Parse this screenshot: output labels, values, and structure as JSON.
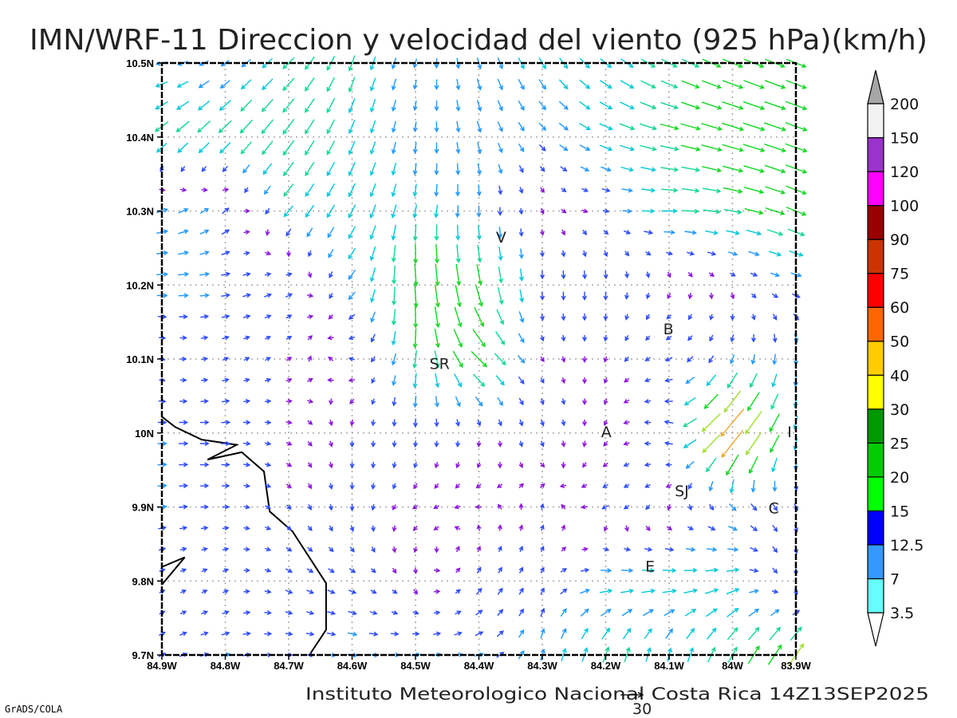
{
  "title": "IMN/WRF-11 Direccion y velocidad del viento (925 hPa)(km/h)",
  "footer": "Instituto Meteorologico Nacional Costa Rica 14Z13SEP2025",
  "grads_label": "GrADS/COLA",
  "reference_vector": {
    "label": "30",
    "value": 30
  },
  "axes": {
    "lon_range": [
      -84.9,
      -83.9
    ],
    "lat_range": [
      9.7,
      10.5
    ],
    "lon_labels": [
      "84.9W",
      "84.8W",
      "84.7W",
      "84.6W",
      "84.5W",
      "84.4W",
      "84.3W",
      "84.2W",
      "84.1W",
      "84W",
      "83.9W"
    ],
    "lat_labels": [
      "10.5N",
      "10.4N",
      "10.3N",
      "10.2N",
      "10.1N",
      "10N",
      "9.9N",
      "9.8N",
      "9.7N"
    ]
  },
  "colorbar": {
    "labels": [
      "3.5",
      "7",
      "12.5",
      "15",
      "20",
      "25",
      "30",
      "40",
      "50",
      "60",
      "75",
      "90",
      "100",
      "120",
      "150",
      "200"
    ],
    "colors": [
      "#66ffff",
      "#3399ff",
      "#0000ff",
      "#00ff00",
      "#00cc00",
      "#009900",
      "#ffff00",
      "#ffcc00",
      "#ff6600",
      "#ff0000",
      "#cc3300",
      "#990000",
      "#ff00ff",
      "#9933cc",
      "#f2f2f2"
    ],
    "below_color": "#ffffff",
    "above_color": "#a6a6a6"
  },
  "cities": [
    {
      "label": "V",
      "lon": -84.365,
      "lat": 10.265
    },
    {
      "label": "B",
      "lon": -84.101,
      "lat": 10.141
    },
    {
      "label": "SR",
      "lon": -84.462,
      "lat": 10.094
    },
    {
      "label": "A",
      "lon": -84.199,
      "lat": 10.002
    },
    {
      "label": "I",
      "lon": -83.91,
      "lat": 10.002
    },
    {
      "label": "SJ",
      "lon": -84.08,
      "lat": 9.922
    },
    {
      "label": "C",
      "lon": -83.935,
      "lat": 9.899
    },
    {
      "label": "E",
      "lon": -84.13,
      "lat": 9.82
    }
  ],
  "coastline": [
    [
      [
        -84.9,
        10.022
      ],
      [
        -84.879,
        10.008
      ],
      [
        -84.837,
        9.991
      ],
      [
        -84.782,
        9.984
      ],
      [
        -84.828,
        9.964
      ],
      [
        -84.774,
        9.974
      ],
      [
        -84.739,
        9.948
      ],
      [
        -84.73,
        9.894
      ],
      [
        -84.694,
        9.867
      ],
      [
        -84.641,
        9.797
      ],
      [
        -84.641,
        9.734
      ],
      [
        -84.665,
        9.703
      ],
      [
        -84.667,
        9.7
      ]
    ],
    [
      [
        -84.9,
        9.819
      ],
      [
        -84.864,
        9.832
      ],
      [
        -84.9,
        9.795
      ]
    ]
  ],
  "wind_field": {
    "units": "km/h",
    "lons": [
      -84.9,
      -84.8,
      -84.7,
      -84.6,
      -84.5,
      -84.4,
      -84.3,
      -84.2,
      -84.1,
      -84.0,
      -83.9
    ],
    "lats": [
      10.5,
      10.4,
      10.3,
      10.2,
      10.1,
      10.0,
      9.9,
      9.8,
      9.7
    ],
    "u": [
      [
        -10,
        -7,
        -10,
        -5,
        -2,
        3,
        6,
        10,
        14,
        18,
        18
      ],
      [
        -12,
        -12,
        -10,
        -5,
        -1,
        3,
        6,
        12,
        17,
        20,
        20
      ],
      [
        10,
        6,
        -8,
        -6,
        -2,
        0,
        1,
        5,
        14,
        16,
        18
      ],
      [
        10,
        8,
        6,
        -6,
        2,
        4,
        0,
        0,
        -1,
        2,
        8
      ],
      [
        4,
        5,
        3,
        -4,
        -2,
        14,
        2,
        -1,
        -6,
        -3,
        0
      ],
      [
        8,
        8,
        3,
        0,
        0,
        0,
        2,
        -1,
        -8,
        -24,
        -3
      ],
      [
        8,
        6,
        3,
        0,
        -3,
        -2,
        1,
        -6,
        -1,
        6,
        3
      ],
      [
        4,
        4,
        6,
        6,
        1,
        4,
        3,
        12,
        14,
        12,
        0
      ],
      [
        6,
        8,
        6,
        9,
        8,
        8,
        3,
        5,
        3,
        8,
        14
      ]
    ],
    "v": [
      [
        -2,
        -5,
        -10,
        -14,
        -8,
        -10,
        -10,
        -8,
        -7,
        -7,
        -7
      ],
      [
        -10,
        -12,
        -14,
        -12,
        -9,
        -10,
        -6,
        -5,
        -4,
        -6,
        -7
      ],
      [
        3,
        5,
        -10,
        -12,
        -12,
        -10,
        -2,
        -1,
        0,
        -3,
        -7
      ],
      [
        0,
        1,
        3,
        -8,
        -22,
        -20,
        -8,
        -8,
        -3,
        -2,
        -2
      ],
      [
        -1,
        2,
        2,
        1,
        -16,
        -14,
        -3,
        -3,
        -3,
        -8,
        -10
      ],
      [
        0,
        0,
        -1,
        -4,
        -6,
        -4,
        -6,
        -2,
        2,
        -28,
        -12
      ],
      [
        1,
        0,
        -3,
        -6,
        -2,
        0,
        4,
        -3,
        -3,
        -6,
        -6
      ],
      [
        2,
        2,
        -3,
        -3,
        -3,
        6,
        5,
        0,
        0,
        3,
        -8
      ],
      [
        3,
        2,
        0,
        -1,
        1,
        2,
        10,
        14,
        12,
        14,
        20
      ]
    ]
  }
}
